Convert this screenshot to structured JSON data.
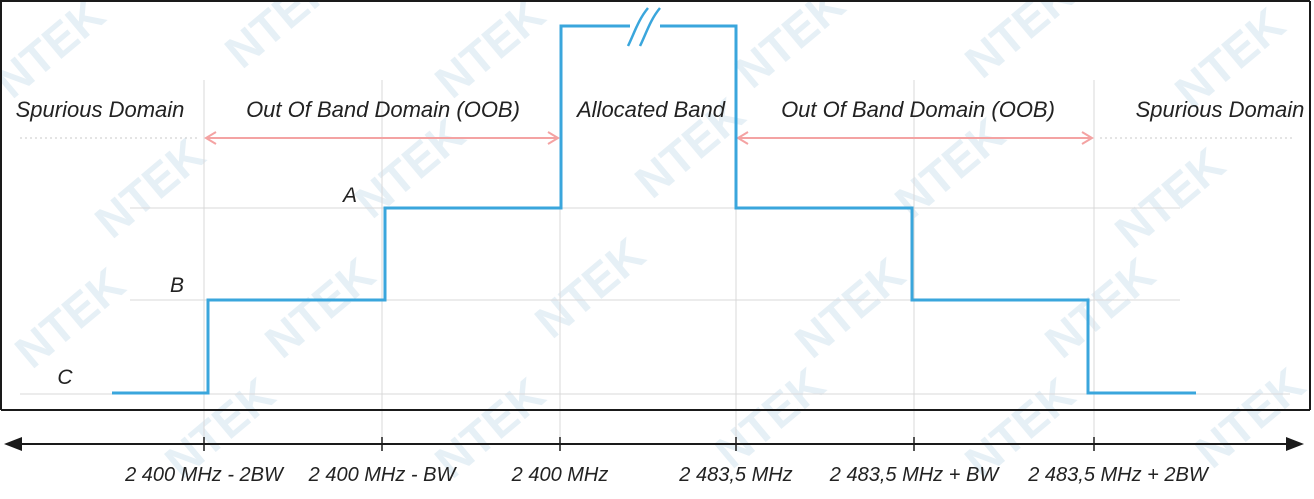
{
  "domains": {
    "spurious_left": "Spurious Domain",
    "oob_left": "Out Of Band Domain (OOB)",
    "allocated": "Allocated Band",
    "oob_right": "Out Of Band Domain (OOB)",
    "spurious_right": "Spurious Domain"
  },
  "levels": {
    "a": "A",
    "b": "B",
    "c": "C"
  },
  "axis_labels": [
    "2 400 MHz - 2BW",
    "2 400 MHz - BW",
    "2 400 MHz",
    "2 483,5 MHz",
    "2 483,5 MHz + BW",
    "2 483,5 MHz + 2BW"
  ],
  "watermark": "NTEK",
  "colors": {
    "spectrum": "#3aa6dc",
    "domain_arrows": "#f4a3a3",
    "frame": "#1a1a1a",
    "watermark": "#e6f0f6"
  }
}
